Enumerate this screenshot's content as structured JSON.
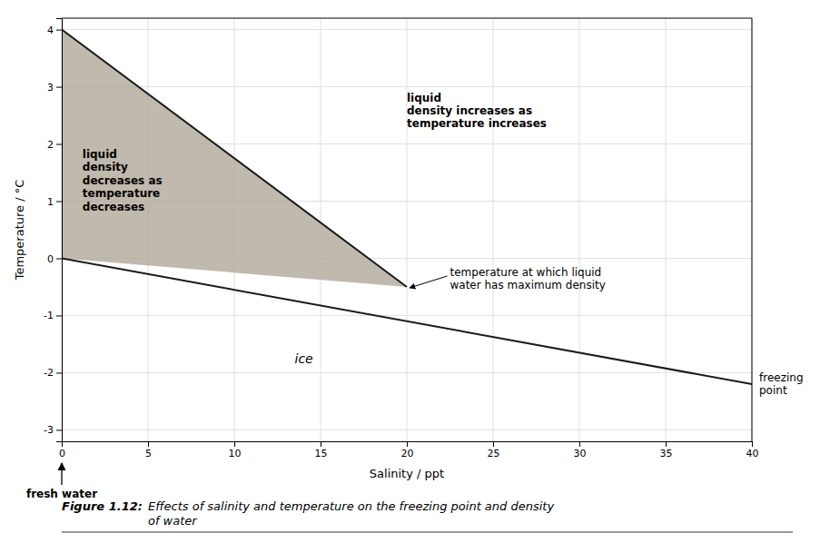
{
  "chart_data": {
    "type": "line",
    "xlabel": "Salinity / ppt",
    "ylabel": "Temperature / °C",
    "xlim": [
      0,
      40
    ],
    "ylim": [
      -3.2,
      4.2
    ],
    "xticks": [
      0,
      5,
      10,
      15,
      20,
      25,
      30,
      35,
      40
    ],
    "yticks": [
      -3,
      -2,
      -1,
      0,
      1,
      2,
      3,
      4
    ],
    "grid": true,
    "series": [
      {
        "type": "area",
        "color": "#b0a898",
        "x": [
          0,
          0,
          20
        ],
        "values": [
          0,
          4,
          -0.5
        ]
      },
      {
        "type": "line",
        "color": "#1a1a1a",
        "x": [
          0,
          20
        ],
        "values": [
          4,
          -0.5
        ]
      },
      {
        "type": "line",
        "color": "#1a1a1a",
        "x": [
          0,
          40
        ],
        "values": [
          0,
          -2.2
        ]
      }
    ],
    "annotations": [
      "fresh water",
      "liquid\ndensity increases as\ntemperature increases",
      "liquid\ndensity\ndecreases as\ntemperature\ndecreases",
      "temperature at which liquid\nwater has maximum density",
      "ice",
      "freezing\npoint"
    ],
    "caption": {
      "label": "Figure 1.12:",
      "text": "Effects of salinity and temperature on the freezing point and density\nof water"
    }
  }
}
